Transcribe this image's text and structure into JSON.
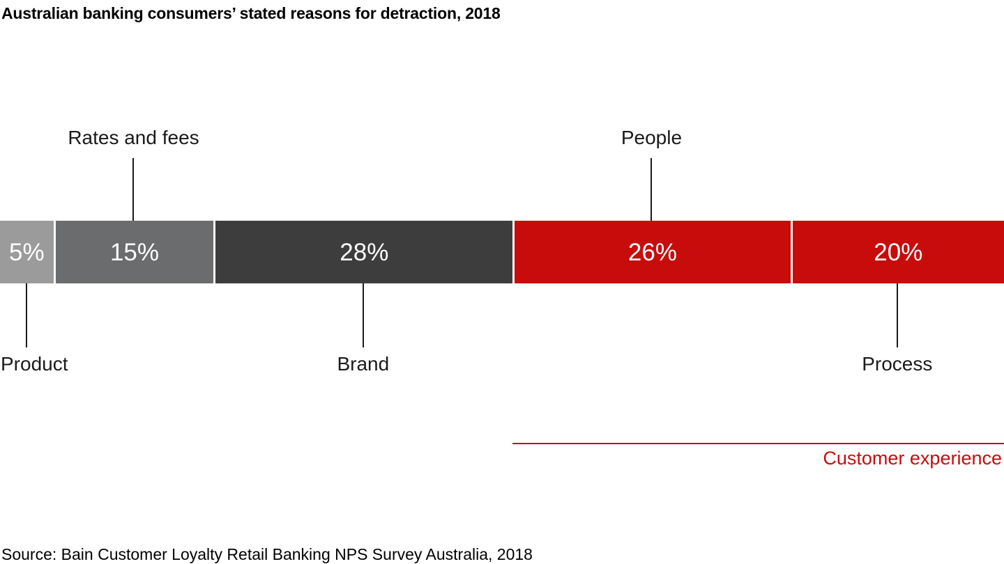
{
  "title": "Australian banking consumers’ stated reasons for detraction, 2018",
  "source": "Source: Bain Customer Loyalty Retail Banking NPS Survey Australia, 2018",
  "colors": {
    "accent_red": "#c80c0c",
    "gray_light": "#9b9b9b",
    "gray_medium": "#6b6c6e",
    "gray_dark": "#3d3d3d",
    "label_text": "#1a1a1a",
    "value_text": "#ffffff",
    "background": "#ffffff"
  },
  "chart_data": {
    "type": "bar",
    "variant": "horizontal-stacked-single-bar",
    "title": "Australian banking consumers’ stated reasons for detraction, 2018",
    "unit": "%",
    "categories": [
      "Product",
      "Rates and fees",
      "Brand",
      "People",
      "Process"
    ],
    "values": [
      5,
      15,
      28,
      26,
      20
    ],
    "segments": [
      {
        "category": "Product",
        "value": 5,
        "value_label": "5%",
        "color": "#9b9b9b",
        "label_side": "below"
      },
      {
        "category": "Rates and fees",
        "value": 15,
        "value_label": "15%",
        "color": "#6b6c6e",
        "label_side": "above"
      },
      {
        "category": "Brand",
        "value": 28,
        "value_label": "28%",
        "color": "#3d3d3d",
        "label_side": "below"
      },
      {
        "category": "People",
        "value": 26,
        "value_label": "26%",
        "color": "#c80c0c",
        "label_side": "above"
      },
      {
        "category": "Process",
        "value": 20,
        "value_label": "20%",
        "color": "#c80c0c",
        "label_side": "below"
      }
    ],
    "group_annotation": {
      "label": "Customer experience",
      "color": "#c80c0c",
      "start_category": "People",
      "end_category": "Process"
    },
    "legend": "none",
    "axes": "none",
    "xlabel": "",
    "ylabel": ""
  }
}
